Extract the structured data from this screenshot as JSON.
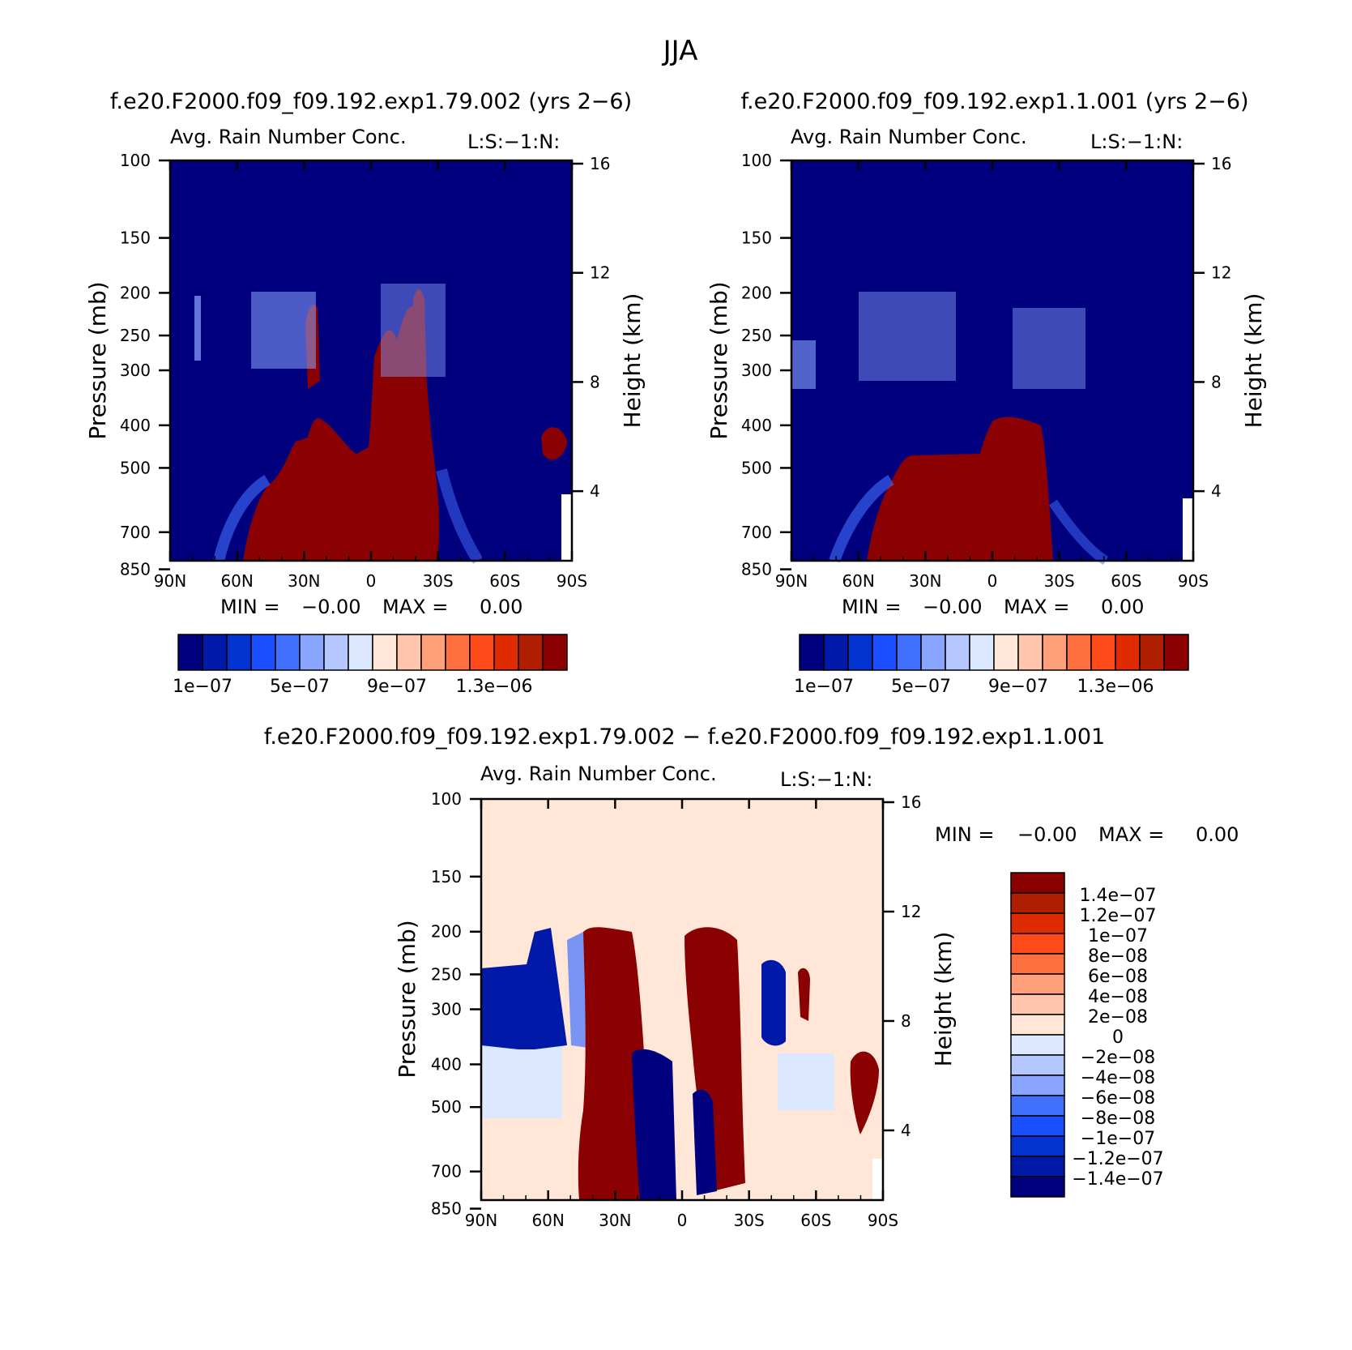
{
  "page": {
    "title": "JJA"
  },
  "colors": {
    "abs_scale": [
      "#00007f",
      "#0019a8",
      "#0033d0",
      "#1a4fff",
      "#4170ff",
      "#8aa5ff",
      "#b4c8ff",
      "#dce8ff",
      "#ffe6d6",
      "#ffc6ad",
      "#ffa07a",
      "#ff7040",
      "#ff4a1a",
      "#e02b00",
      "#b01e00",
      "#8b0000"
    ],
    "diff_scale": [
      "#00007f",
      "#0019a8",
      "#0033d0",
      "#1a4fff",
      "#4170ff",
      "#8aa5ff",
      "#b4c8ff",
      "#dce8ff",
      "#ffe6d6",
      "#ffc6ad",
      "#ffa07a",
      "#ff7040",
      "#ff4a1a",
      "#e02b00",
      "#b01e00",
      "#8b0000"
    ]
  },
  "chart_data": [
    {
      "type": "heatmap",
      "panel_title": "f.e20.F2000.f09_f09.192.exp1.79.002 (yrs 2−6)",
      "title": "Avg. Rain Number Conc.",
      "subtitle": "L:S:−1:N:",
      "ylabel": "Pressure (mb)",
      "ylabel_right": "Height (km)",
      "x_ticks": [
        "90N",
        "60N",
        "30N",
        "0",
        "30S",
        "60S",
        "90S"
      ],
      "y_ticks": [
        100,
        150,
        200,
        250,
        300,
        400,
        500,
        700,
        850
      ],
      "y_right_ticks": [
        16,
        12,
        8,
        4
      ],
      "min_label": "MIN =",
      "min_value": "−0.00",
      "max_label": "MAX =",
      "max_value": "0.00",
      "colorbar_labels": [
        "1e−07",
        "5e−07",
        "9e−07",
        "1.3e−06"
      ]
    },
    {
      "type": "heatmap",
      "panel_title": "f.e20.F2000.f09_f09.192.exp1.1.001 (yrs 2−6)",
      "title": "Avg. Rain Number Conc.",
      "subtitle": "L:S:−1:N:",
      "ylabel": "Pressure (mb)",
      "ylabel_right": "Height (km)",
      "x_ticks": [
        "90N",
        "60N",
        "30N",
        "0",
        "30S",
        "60S",
        "90S"
      ],
      "y_ticks": [
        100,
        150,
        200,
        250,
        300,
        400,
        500,
        700,
        850
      ],
      "y_right_ticks": [
        16,
        12,
        8,
        4
      ],
      "min_label": "MIN =",
      "min_value": "−0.00",
      "max_label": "MAX =",
      "max_value": "0.00",
      "colorbar_labels": [
        "1e−07",
        "5e−07",
        "9e−07",
        "1.3e−06"
      ]
    },
    {
      "type": "heatmap",
      "panel_title": "f.e20.F2000.f09_f09.192.exp1.79.002 − f.e20.F2000.f09_f09.192.exp1.1.001",
      "title": "Avg. Rain Number Conc.",
      "subtitle": "L:S:−1:N:",
      "ylabel": "Pressure (mb)",
      "ylabel_right": "Height (km)",
      "x_ticks": [
        "90N",
        "60N",
        "30N",
        "0",
        "30S",
        "60S",
        "90S"
      ],
      "y_ticks": [
        100,
        150,
        200,
        250,
        300,
        400,
        500,
        700,
        850
      ],
      "y_right_ticks": [
        16,
        12,
        8,
        4
      ],
      "min_label": "MIN =",
      "min_value": "−0.00",
      "max_label": "MAX =",
      "max_value": "0.00",
      "colorbar_labels": [
        "1.4e−07",
        "1.2e−07",
        "1e−07",
        "8e−08",
        "6e−08",
        "4e−08",
        "2e−08",
        "0",
        "−2e−08",
        "−4e−08",
        "−6e−08",
        "−8e−08",
        "−1e−07",
        "−1.2e−07",
        "−1.4e−07"
      ]
    }
  ]
}
